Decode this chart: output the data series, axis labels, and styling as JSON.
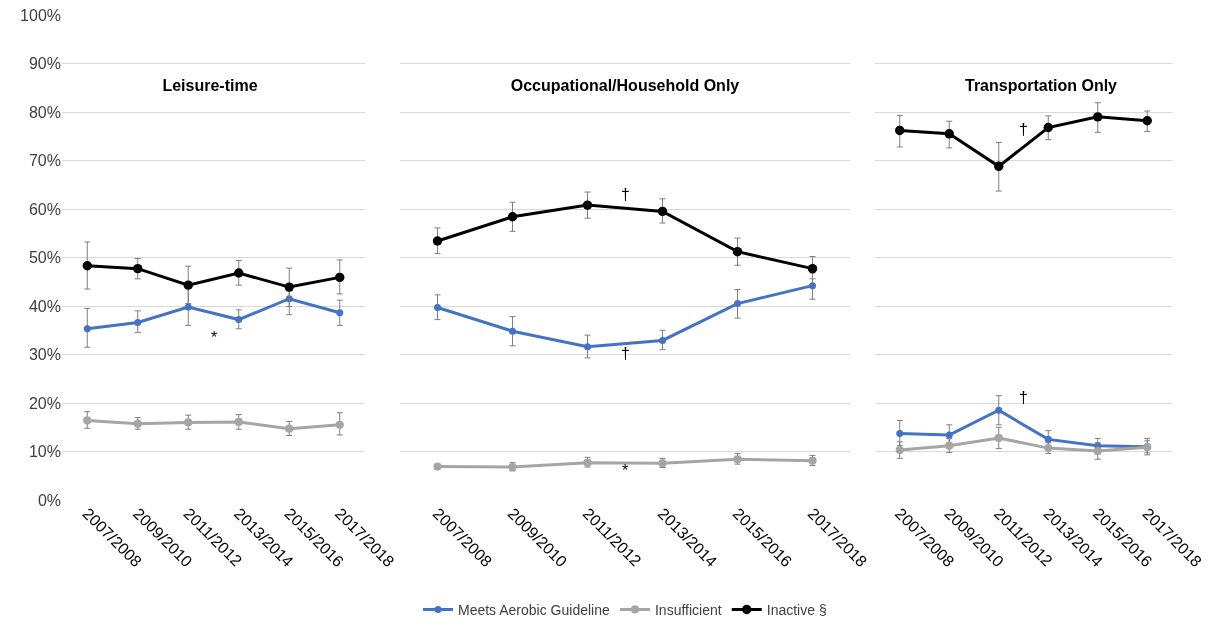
{
  "chart_data": [
    {
      "type": "line",
      "title": "Leisure-time",
      "categories": [
        "2007/2008",
        "2009/2010",
        "2011/2012",
        "2013/2014",
        "2015/2016",
        "2017/2018"
      ],
      "ylim": [
        0,
        100
      ],
      "yticks": [
        {
          "value": 0,
          "label": "0%"
        },
        {
          "value": 10,
          "label": "10%"
        },
        {
          "value": 20,
          "label": "20%"
        },
        {
          "value": 30,
          "label": "30%"
        },
        {
          "value": 40,
          "label": "40%"
        },
        {
          "value": 50,
          "label": "50%"
        },
        {
          "value": 60,
          "label": "60%"
        },
        {
          "value": 70,
          "label": "70%"
        },
        {
          "value": 80,
          "label": "80%"
        },
        {
          "value": 90,
          "label": "90%"
        },
        {
          "value": 100,
          "label": "100%"
        }
      ],
      "grid": "y",
      "marker": "circle",
      "line_style": "solid",
      "series": [
        {
          "color": "#4472c4",
          "values": [
            35.3,
            36.6,
            39.8,
            37.2,
            41.5,
            38.6
          ],
          "errors": [
            [
              31.5,
              39.5
            ],
            [
              34.5,
              39
            ],
            [
              36,
              44
            ],
            [
              35.3,
              39.2
            ],
            [
              38.2,
              44.5
            ],
            [
              36,
              41.2
            ]
          ]
        },
        {
          "color": "#a5a5a5",
          "values": [
            16.4,
            15.7,
            16,
            16.1,
            14.7,
            15.5
          ],
          "errors": [
            [
              14.8,
              18.2
            ],
            [
              14.6,
              17
            ],
            [
              14.6,
              17.5
            ],
            [
              14.6,
              17.6
            ],
            [
              13.3,
              16.2
            ],
            [
              13.4,
              18
            ]
          ]
        },
        {
          "color": "#000000",
          "values": [
            48.3,
            47.7,
            44.3,
            46.8,
            43.9,
            45.9
          ],
          "errors": [
            [
              43.5,
              53.2
            ],
            [
              45.6,
              49.8
            ],
            [
              40.5,
              48.2
            ],
            [
              44.3,
              49.4
            ],
            [
              39.9,
              47.8
            ],
            [
              42.5,
              49.5
            ]
          ]
        }
      ],
      "annotations": [
        "*"
      ]
    },
    {
      "type": "line",
      "title": "Occupational/Household Only",
      "categories": [
        "2007/2008",
        "2009/2010",
        "2011/2012",
        "2013/2014",
        "2015/2016",
        "2017/2018"
      ],
      "ylim": [
        0,
        100
      ],
      "yticks": [
        0,
        10,
        20,
        30,
        40,
        50,
        60,
        70,
        80,
        90,
        100
      ],
      "tick_labels": "x",
      "grid": "y",
      "marker": "circle",
      "line_style": "solid",
      "legend": "bottom",
      "series": [
        {
          "name": "Meets Aerobic Guideline",
          "color": "#4472c4",
          "values": [
            39.7,
            34.8,
            31.6,
            32.9,
            40.5,
            44.2
          ],
          "errors": [
            [
              37.2,
              42.3
            ],
            [
              31.8,
              37.8
            ],
            [
              29.3,
              34
            ],
            [
              31,
              35
            ],
            [
              37.5,
              43.4
            ],
            [
              41.4,
              46.8
            ]
          ]
        },
        {
          "name": "Insufficient",
          "color": "#a5a5a5",
          "values": [
            6.9,
            6.8,
            7.7,
            7.6,
            8.4,
            8.1
          ],
          "errors": [
            [
              6.4,
              7.3
            ],
            [
              6,
              7.7
            ],
            [
              6.8,
              8.8
            ],
            [
              6.7,
              8.6
            ],
            [
              7.4,
              9.6
            ],
            [
              7.1,
              9.2
            ]
          ]
        },
        {
          "name": "Inactive §",
          "color": "#000000",
          "values": [
            53.4,
            58.4,
            60.8,
            59.5,
            51.2,
            47.7
          ],
          "errors": [
            [
              50.8,
              56.1
            ],
            [
              55.4,
              61.4
            ],
            [
              58.1,
              63.5
            ],
            [
              57.1,
              62.1
            ],
            [
              48.4,
              54
            ],
            [
              45.6,
              50.2
            ]
          ]
        }
      ],
      "annotations": [
        "†",
        "†",
        "*"
      ]
    },
    {
      "type": "line",
      "title": "Transportation Only",
      "categories": [
        "2007/2008",
        "2009/2010",
        "2011/2012",
        "2013/2014",
        "2015/2016",
        "2017/2018"
      ],
      "ylim": [
        0,
        100
      ],
      "yticks": [
        0,
        10,
        20,
        30,
        40,
        50,
        60,
        70,
        80,
        90,
        100
      ],
      "tick_labels": "x",
      "grid": "y",
      "marker": "circle",
      "line_style": "solid",
      "series": [
        {
          "color": "#4472c4",
          "values": [
            13.7,
            13.4,
            18.5,
            12.5,
            11.2,
            11
          ],
          "errors": [
            [
              11.2,
              16.4
            ],
            [
              11.4,
              15.5
            ],
            [
              15.5,
              21.5
            ],
            [
              11,
              14.3
            ],
            [
              9.5,
              12.7
            ],
            [
              9.3,
              12.7
            ]
          ]
        },
        {
          "color": "#a5a5a5",
          "values": [
            10.3,
            11.2,
            12.8,
            10.7,
            10.1,
            10.9
          ],
          "errors": [
            [
              8.6,
              12
            ],
            [
              9.8,
              12.7
            ],
            [
              10.6,
              15
            ],
            [
              9.6,
              11.8
            ],
            [
              8.4,
              11.8
            ],
            [
              9.7,
              12.2
            ]
          ]
        },
        {
          "color": "#000000",
          "values": [
            76.2,
            75.5,
            68.8,
            76.8,
            79,
            78.2
          ],
          "errors": [
            [
              72.8,
              79.3
            ],
            [
              72.6,
              78.1
            ],
            [
              63.7,
              73.7
            ],
            [
              74.3,
              79.2
            ],
            [
              75.8,
              81.9
            ],
            [
              76,
              80.2
            ]
          ]
        }
      ],
      "annotations": [
        "†",
        "†"
      ]
    }
  ]
}
